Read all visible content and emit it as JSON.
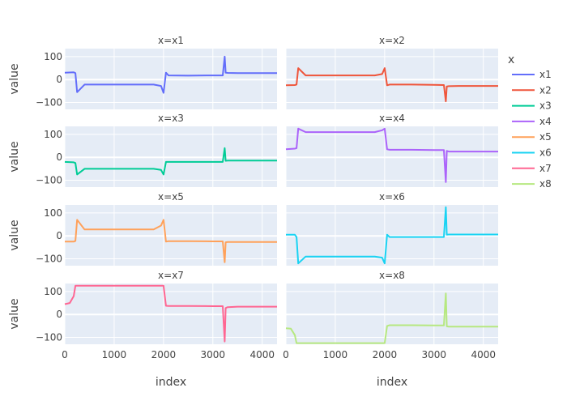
{
  "chart_data": {
    "type": "line",
    "facet": "x",
    "xlabel": "index",
    "ylabel": "value",
    "xlim": [
      0,
      4300
    ],
    "ylim": [
      -130,
      135
    ],
    "x_ticks": [
      0,
      1000,
      2000,
      3000,
      4000
    ],
    "x_tick_labels": [
      "0",
      "1000",
      "2000",
      "3000",
      "4000"
    ],
    "y_ticks": [
      -100,
      0,
      100
    ],
    "y_tick_labels": [
      "−100",
      "0",
      "100"
    ],
    "grid": true,
    "legend": {
      "title": "x",
      "placement": "right"
    },
    "series": [
      {
        "name": "x1",
        "panel_title": "x=x1",
        "color": "#636efa",
        "x": [
          0,
          180,
          215,
          250,
          400,
          1800,
          1950,
          2000,
          2050,
          2100,
          2500,
          3000,
          3200,
          3240,
          3260,
          3300,
          3500,
          4300
        ],
        "y": [
          30,
          32,
          28,
          -55,
          -22,
          -22,
          -28,
          -58,
          30,
          18,
          17,
          18,
          18,
          100,
          30,
          29,
          28,
          28
        ]
      },
      {
        "name": "x2",
        "panel_title": "x=x2",
        "color": "#ef553b",
        "x": [
          0,
          180,
          215,
          250,
          400,
          1800,
          1950,
          2000,
          2050,
          2100,
          2500,
          3000,
          3200,
          3240,
          3260,
          3300,
          3500,
          4300
        ],
        "y": [
          -25,
          -24,
          -22,
          50,
          18,
          18,
          24,
          50,
          -25,
          -22,
          -22,
          -23,
          -24,
          -95,
          -30,
          -29,
          -28,
          -28
        ]
      },
      {
        "name": "x3",
        "panel_title": "x=x3",
        "color": "#00cc96",
        "x": [
          0,
          180,
          215,
          250,
          400,
          1800,
          1950,
          2000,
          2050,
          2100,
          2500,
          3000,
          3200,
          3240,
          3260,
          3300,
          3500,
          4300
        ],
        "y": [
          -20,
          -22,
          -25,
          -75,
          -50,
          -50,
          -55,
          -75,
          -20,
          -20,
          -20,
          -20,
          -20,
          40,
          -15,
          -14,
          -14,
          -14
        ]
      },
      {
        "name": "x4",
        "panel_title": "x=x4",
        "color": "#ab63fa",
        "x": [
          0,
          180,
          215,
          250,
          400,
          1800,
          1950,
          2000,
          2050,
          2100,
          2500,
          3000,
          3200,
          3240,
          3260,
          3300,
          3500,
          4300
        ],
        "y": [
          35,
          38,
          40,
          125,
          110,
          110,
          118,
          125,
          35,
          33,
          33,
          32,
          32,
          -108,
          28,
          25,
          25,
          25
        ]
      },
      {
        "name": "x5",
        "panel_title": "x=x5",
        "color": "#ffa15a",
        "x": [
          0,
          180,
          215,
          250,
          400,
          1800,
          1950,
          2000,
          2050,
          2100,
          2500,
          3000,
          3200,
          3240,
          3260,
          3300,
          3500,
          4300
        ],
        "y": [
          -25,
          -25,
          -22,
          70,
          28,
          28,
          45,
          70,
          -25,
          -23,
          -23,
          -24,
          -24,
          -115,
          -28,
          -27,
          -27,
          -27
        ]
      },
      {
        "name": "x6",
        "panel_title": "x=x6",
        "color": "#19d3f3",
        "x": [
          0,
          180,
          215,
          250,
          400,
          1800,
          1950,
          2000,
          2050,
          2100,
          2500,
          3000,
          3200,
          3240,
          3260,
          3300,
          3500,
          4300
        ],
        "y": [
          5,
          5,
          -5,
          -120,
          -90,
          -90,
          -95,
          -120,
          5,
          -5,
          -5,
          -5,
          -5,
          125,
          5,
          6,
          6,
          6
        ]
      },
      {
        "name": "x7",
        "panel_title": "x=x7",
        "color": "#ff6692",
        "x": [
          0,
          100,
          180,
          215,
          250,
          400,
          1800,
          1950,
          2000,
          2050,
          2100,
          2500,
          3000,
          3200,
          3240,
          3260,
          3300,
          3500,
          4300
        ],
        "y": [
          45,
          50,
          80,
          125,
          125,
          125,
          125,
          125,
          125,
          38,
          37,
          37,
          36,
          36,
          -118,
          28,
          32,
          34,
          34
        ]
      },
      {
        "name": "x8",
        "panel_title": "x=x8",
        "color": "#b6e880",
        "x": [
          0,
          100,
          180,
          215,
          250,
          400,
          1800,
          1950,
          2000,
          2050,
          2100,
          2500,
          3000,
          3200,
          3240,
          3260,
          3300,
          3500,
          4300
        ],
        "y": [
          -60,
          -62,
          -90,
          -125,
          -125,
          -125,
          -125,
          -125,
          -125,
          -50,
          -47,
          -47,
          -48,
          -48,
          92,
          -52,
          -53,
          -53,
          -53
        ]
      }
    ]
  }
}
